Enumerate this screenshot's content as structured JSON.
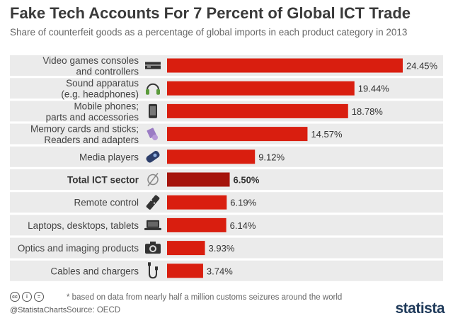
{
  "title": "Fake Tech Accounts For 7 Percent of Global ICT Trade",
  "subtitle": "Share of counterfeit goods as a percentage of global imports in each product category in 2013",
  "footer": {
    "note": "* based on data from nearly half a million customs seizures around the world",
    "source": "Source: OECD",
    "handle": "@StatistaCharts",
    "brand": "statista",
    "cc_icons": [
      "cc",
      "i",
      "="
    ]
  },
  "colors": {
    "bar": "#d91e0f",
    "highlight_bar": "#a5140c",
    "row_band": "#ebebeb"
  },
  "chart_data": {
    "type": "bar",
    "orientation": "horizontal",
    "categories": [
      [
        "Video games consoles",
        "and controllers"
      ],
      [
        "Sound apparatus",
        "(e.g. headphones)"
      ],
      [
        "Mobile phones;",
        "parts and accessories"
      ],
      [
        "Memory cards and sticks;",
        "Readers and adapters"
      ],
      [
        "Media players"
      ],
      [
        "Total ICT sector"
      ],
      [
        "Remote control"
      ],
      [
        "Laptops, desktops, tablets"
      ],
      [
        "Optics and imaging products"
      ],
      [
        "Cables and chargers"
      ]
    ],
    "values": [
      24.45,
      19.44,
      18.78,
      14.57,
      9.12,
      6.5,
      6.19,
      6.14,
      3.93,
      3.74
    ],
    "value_labels": [
      "24.45%",
      "19.44%",
      "18.78%",
      "14.57%",
      "9.12%",
      "6.50%",
      "6.19%",
      "6.14%",
      "3.93%",
      "3.74%"
    ],
    "highlight_index": 5,
    "icons": [
      "console-icon",
      "headphones-icon",
      "phone-icon",
      "memory-icon",
      "media-player-icon",
      "empty-set-icon",
      "remote-icon",
      "laptop-icon",
      "camera-icon",
      "cable-icon"
    ],
    "xlim": [
      0,
      25
    ],
    "grid": false
  }
}
